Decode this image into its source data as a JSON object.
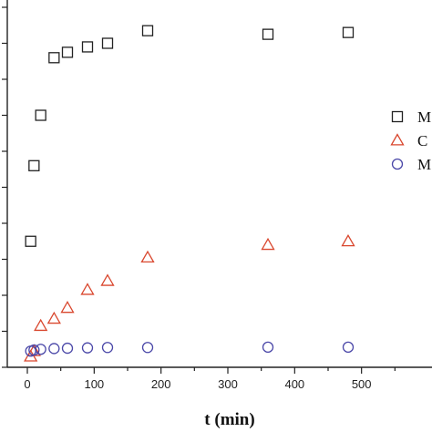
{
  "chart_data": {
    "type": "scatter",
    "xlabel": "t (min)",
    "ylabel": "",
    "xlim": [
      -30,
      600
    ],
    "ylim": [
      0,
      100
    ],
    "xticks": [
      0,
      100,
      200,
      300,
      400,
      500
    ],
    "yticks": [
      0,
      10,
      20,
      30,
      40,
      50,
      60,
      70,
      80,
      90,
      100
    ],
    "grid": false,
    "legend_position": "right",
    "series": [
      {
        "name": "M",
        "marker": "square",
        "color": "#222222",
        "x": [
          5,
          10,
          20,
          40,
          60,
          90,
          120,
          180,
          360,
          480
        ],
        "y": [
          35,
          56,
          70,
          86,
          87.5,
          89,
          90,
          93.5,
          92.5,
          93
        ]
      },
      {
        "name": "C",
        "marker": "triangle",
        "color": "#d9472e",
        "x": [
          5,
          10,
          20,
          40,
          60,
          90,
          120,
          180,
          360,
          480
        ],
        "y": [
          3,
          4.5,
          11.5,
          13.5,
          16.5,
          21.5,
          24,
          30.5,
          34,
          35
        ]
      },
      {
        "name": "M",
        "marker": "circle",
        "color": "#4a47a8",
        "x": [
          5,
          10,
          20,
          40,
          60,
          90,
          120,
          180,
          360,
          480
        ],
        "y": [
          4.5,
          4.8,
          5,
          5.2,
          5.3,
          5.4,
          5.5,
          5.5,
          5.6,
          5.6
        ]
      }
    ]
  }
}
